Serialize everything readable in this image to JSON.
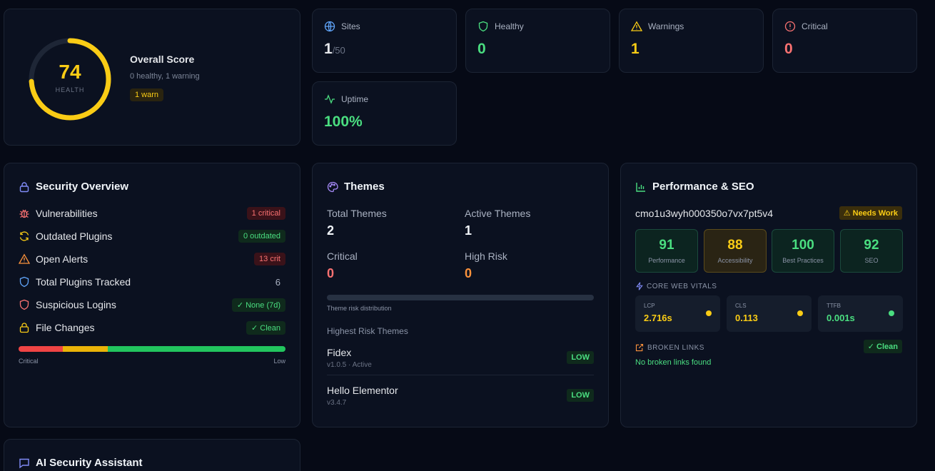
{
  "score": {
    "value": "74",
    "ring_fraction": 0.74,
    "ring_label": "HEALTH",
    "title": "Overall Score",
    "subtitle": "0 healthy, 1 warning",
    "badge": "1 warn"
  },
  "stats": {
    "sites": {
      "label": "Sites",
      "value": "1",
      "total": "/50",
      "icon": "globe-icon"
    },
    "healthy": {
      "label": "Healthy",
      "value": "0",
      "icon": "shield-icon"
    },
    "warnings": {
      "label": "Warnings",
      "value": "1",
      "icon": "warning-triangle-icon"
    },
    "critical": {
      "label": "Critical",
      "value": "0",
      "icon": "alert-circle-icon"
    },
    "uptime": {
      "label": "Uptime",
      "value": "100%",
      "icon": "activity-icon"
    }
  },
  "security": {
    "title": "Security Overview",
    "rows": [
      {
        "label": "Vulnerabilities",
        "value": "1 critical",
        "icon": "bug-icon"
      },
      {
        "label": "Outdated Plugins",
        "value": "0 outdated",
        "icon": "refresh-icon"
      },
      {
        "label": "Open Alerts",
        "value": "13 crit",
        "icon": "warning-triangle-icon"
      },
      {
        "label": "Total Plugins Tracked",
        "value": "6",
        "icon": "shield-icon"
      },
      {
        "label": "Suspicious Logins",
        "value": "✓ None (7d)",
        "icon": "shield-icon"
      },
      {
        "label": "File Changes",
        "value": "✓ Clean",
        "icon": "lock-icon"
      }
    ],
    "risk_scale": {
      "low_label": "Low",
      "high_label": "Critical",
      "segments": [
        0.165,
        0.17,
        0.665
      ]
    }
  },
  "themes": {
    "title": "Themes",
    "total_label": "Total Themes",
    "total": "2",
    "active_label": "Active Themes",
    "active": "1",
    "critical_label": "Critical",
    "critical": "0",
    "high_label": "High Risk",
    "high": "0",
    "distribution_label": "Theme risk distribution",
    "highest_title": "Highest Risk Themes",
    "items": [
      {
        "name": "Fidex",
        "meta": "v1.0.5 · Active",
        "risk": "LOW"
      },
      {
        "name": "Hello Elementor",
        "meta": "v3.4.7",
        "risk": "LOW"
      }
    ]
  },
  "perf": {
    "title": "Performance & SEO",
    "site_id": "cmo1u3wyh000350o7vx7pt5v4",
    "status": "⚠ Needs Work",
    "scores": [
      {
        "value": "91",
        "label": "Performance"
      },
      {
        "value": "88",
        "label": "Accessibility"
      },
      {
        "value": "100",
        "label": "Best Practices"
      },
      {
        "value": "92",
        "label": "SEO"
      }
    ],
    "cwv_title": "CORE WEB VITALS",
    "cwv": [
      {
        "key": "LCP",
        "value": "2.716s",
        "color": "#facc15"
      },
      {
        "key": "CLS",
        "value": "0.113",
        "color": "#facc15"
      },
      {
        "key": "TTFB",
        "value": "0.001s",
        "color": "#4ade80"
      }
    ],
    "broken_title": "BROKEN LINKS",
    "broken_badge": "✓ Clean",
    "broken_text": "No broken links found"
  },
  "ai": {
    "title": "AI Security Assistant"
  },
  "colors": {
    "yellow": "#facc15",
    "green": "#4ade80",
    "red": "#f87171",
    "orange": "#fb923c",
    "blue": "#60a5fa",
    "purple": "#a78bfa"
  }
}
